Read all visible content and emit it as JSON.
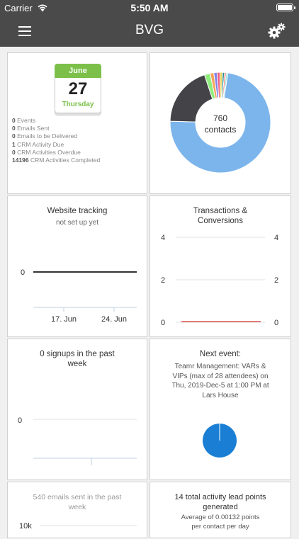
{
  "status_bar": {
    "carrier": "Carrier",
    "time": "5:50 AM"
  },
  "nav": {
    "title": "BVG",
    "menu_icon": "hamburger-menu-icon",
    "settings_icon": "gears-icon"
  },
  "colors": {
    "nav_bg": "#4a4a4a",
    "calendar_green": "#7cc04a",
    "donut_blue": "#7cb5ec",
    "donut_dark": "#434348",
    "pie_blue": "#1a7fd4"
  },
  "calendar": {
    "month": "June",
    "day": "27",
    "weekday": "Thursday",
    "stats": [
      {
        "value": "0",
        "label": "Events"
      },
      {
        "value": "0",
        "label": "Emails Sent"
      },
      {
        "value": "0",
        "label": "Emails to be Delivered"
      },
      {
        "value": "1",
        "label": "CRM Activity Due"
      },
      {
        "value": "0",
        "label": "CRM Activities Overdue"
      },
      {
        "value": "14196",
        "label": "CRM Activities Completed"
      }
    ]
  },
  "contacts": {
    "center_count": "760",
    "center_label": "contacts",
    "chart_data": {
      "type": "pie",
      "slices": [
        {
          "value": 555,
          "color": "#7cb5ec"
        },
        {
          "value": 148,
          "color": "#434348"
        },
        {
          "value": 14,
          "color": "#90ed7d"
        },
        {
          "value": 9,
          "color": "#f7a35c"
        },
        {
          "value": 8,
          "color": "#8085e9"
        },
        {
          "value": 7,
          "color": "#f15c80"
        },
        {
          "value": 6,
          "color": "#e4d354"
        },
        {
          "value": 5,
          "color": "#2b908f"
        },
        {
          "value": 4,
          "color": "#f45b5b"
        },
        {
          "value": 4,
          "color": "#91e8e1"
        }
      ]
    }
  },
  "website_tracking": {
    "title": "Website tracking",
    "subtitle": "not set up yet",
    "chart_data": {
      "type": "line",
      "x_ticks": [
        "17. Jun",
        "24. Jun"
      ],
      "y_ticks": [
        "0"
      ],
      "series": [
        {
          "values": [
            0,
            0
          ]
        }
      ]
    }
  },
  "transactions": {
    "title": "Transactions & Conversions",
    "chart_data": {
      "type": "line",
      "y_left_ticks": [
        "4",
        "2",
        "0"
      ],
      "y_right_ticks": [
        "4",
        "2",
        "0"
      ],
      "ylim": [
        0,
        4
      ],
      "series": [
        {
          "values": [
            0,
            0
          ],
          "color": "#d9534f"
        }
      ]
    }
  },
  "signups": {
    "title": "0 signups in the past week",
    "chart_data": {
      "type": "line",
      "y_ticks": [
        "0"
      ],
      "series": [
        {
          "values": [
            0,
            0
          ]
        }
      ]
    }
  },
  "next_event": {
    "title": "Next event:",
    "description": "Teamr Management: VARs & VIPs (max of 28 attendees) on Thu, 2019-Dec-5 at 1:00 PM at Lars House",
    "chart_data": {
      "type": "pie",
      "slices": [
        {
          "value": 100,
          "color": "#1a7fd4"
        }
      ]
    }
  },
  "emails": {
    "title": "540 emails sent in the past week",
    "chart_data": {
      "type": "line",
      "y_ticks": [
        "10k"
      ]
    }
  },
  "lead_points": {
    "title": "14 total activity lead points generated",
    "subtitle": "Average of 0.00132 points per contact per day"
  }
}
